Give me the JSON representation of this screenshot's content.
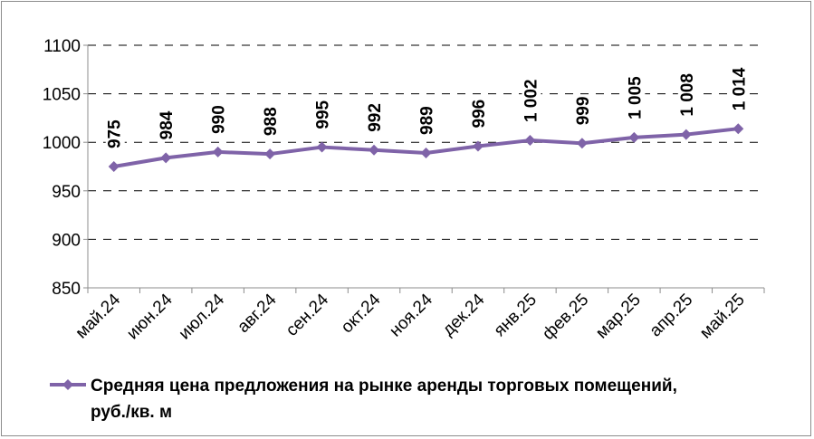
{
  "chart_data": {
    "type": "line",
    "title": "",
    "xlabel": "",
    "ylabel": "",
    "categories": [
      "май.24",
      "июн.24",
      "июл.24",
      "авг.24",
      "сен.24",
      "окт.24",
      "ноя.24",
      "дек.24",
      "янв.25",
      "фев.25",
      "мар.25",
      "апр.25",
      "май.25"
    ],
    "series": [
      {
        "name": "Средняя цена предложения на рынке аренды торговых помещений, руб./кв. м",
        "values": [
          975,
          984,
          990,
          988,
          995,
          992,
          989,
          996,
          1002,
          999,
          1005,
          1008,
          1014
        ],
        "labels": [
          "975",
          "984",
          "990",
          "988",
          "995",
          "992",
          "989",
          "996",
          "1 002",
          "999",
          "1 005",
          "1 008",
          "1 014"
        ],
        "color": "#7f63a8"
      }
    ],
    "ylim": [
      850,
      1100
    ],
    "yticks": [
      850,
      900,
      950,
      1000,
      1050,
      1100
    ],
    "grid": true,
    "legend": "bottom"
  }
}
